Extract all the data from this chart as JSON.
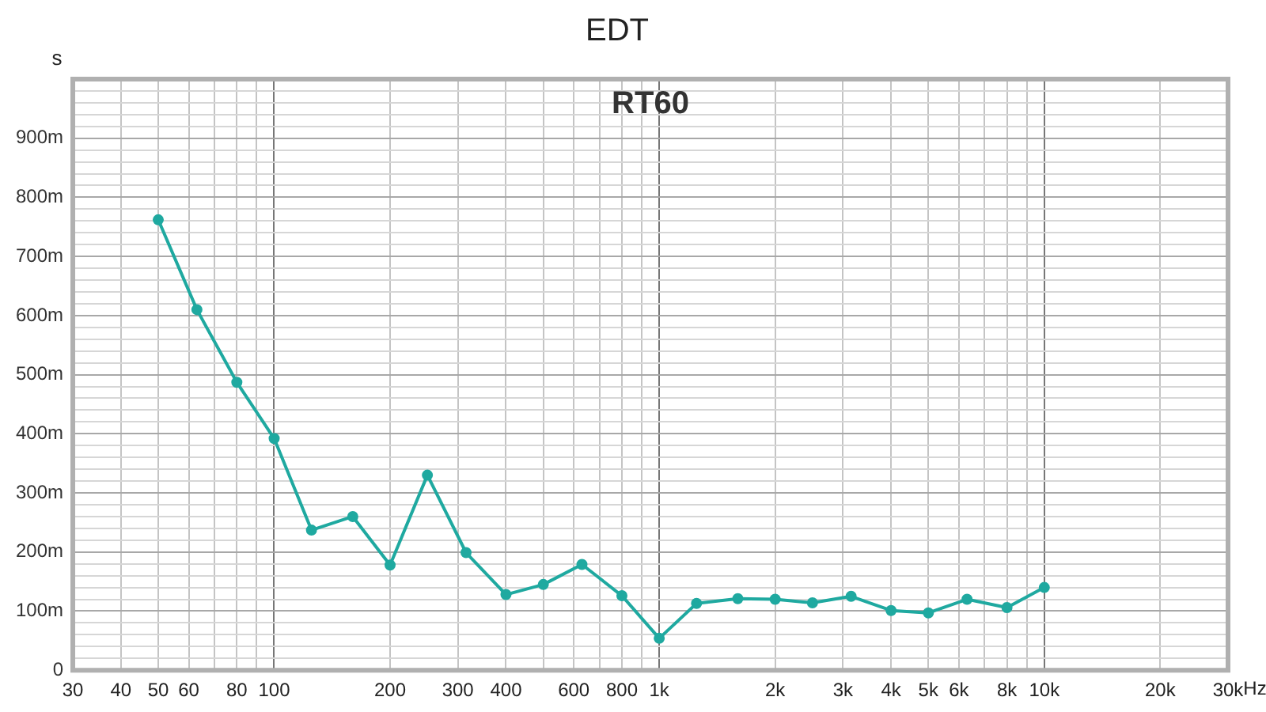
{
  "chart_data": {
    "type": "line",
    "title": "EDT",
    "ylabel": "s",
    "annotations": [
      "RT60"
    ],
    "x": [
      50,
      63,
      80,
      100,
      125,
      160,
      200,
      250,
      315,
      400,
      500,
      630,
      800,
      1000,
      1250,
      1600,
      2000,
      2500,
      3150,
      4000,
      5000,
      6300,
      8000,
      10000
    ],
    "series": [
      {
        "color": "#1fa9a0",
        "values": [
          762,
          610,
          487,
          392,
          237,
          260,
          178,
          330,
          199,
          128,
          145,
          179,
          126,
          54,
          113,
          121,
          120,
          114,
          125,
          101,
          97,
          120,
          106,
          140
        ]
      }
    ],
    "log": "x",
    "xlim": [
      30,
      30000
    ],
    "xticks": [
      30,
      40,
      50,
      60,
      {
        "value": 70,
        "label": null
      },
      80,
      {
        "value": 90,
        "label": null
      },
      100,
      200,
      300,
      400,
      {
        "value": 500,
        "label": null
      },
      600,
      {
        "value": 700,
        "label": null
      },
      800,
      {
        "value": 900,
        "label": null
      },
      {
        "value": 1000,
        "label": "1k"
      },
      {
        "value": 2000,
        "label": "2k"
      },
      {
        "value": 3000,
        "label": "3k"
      },
      {
        "value": 4000,
        "label": "4k"
      },
      {
        "value": 5000,
        "label": "5k"
      },
      {
        "value": 6000,
        "label": "6k"
      },
      {
        "value": 7000,
        "label": null
      },
      {
        "value": 8000,
        "label": "8k"
      },
      {
        "value": 9000,
        "label": null
      },
      {
        "value": 10000,
        "label": "10k"
      },
      {
        "value": 20000,
        "label": "20k"
      },
      {
        "value": 30000,
        "label": "30k"
      }
    ],
    "xlabel": "Hz",
    "ylim": [
      0,
      1000
    ],
    "yticks": [
      0,
      {
        "value": 20,
        "label": null
      },
      {
        "value": 40,
        "label": null
      },
      {
        "value": 60,
        "label": null
      },
      {
        "value": 80,
        "label": null
      },
      {
        "value": 100,
        "label": "100m"
      },
      {
        "value": 120,
        "label": null
      },
      {
        "value": 140,
        "label": null
      },
      {
        "value": 160,
        "label": null
      },
      {
        "value": 180,
        "label": null
      },
      {
        "value": 200,
        "label": "200m"
      },
      {
        "value": 220,
        "label": null
      },
      {
        "value": 240,
        "label": null
      },
      {
        "value": 260,
        "label": null
      },
      {
        "value": 280,
        "label": null
      },
      {
        "value": 300,
        "label": "300m"
      },
      {
        "value": 320,
        "label": null
      },
      {
        "value": 340,
        "label": null
      },
      {
        "value": 360,
        "label": null
      },
      {
        "value": 380,
        "label": null
      },
      {
        "value": 400,
        "label": "400m"
      },
      {
        "value": 420,
        "label": null
      },
      {
        "value": 440,
        "label": null
      },
      {
        "value": 460,
        "label": null
      },
      {
        "value": 480,
        "label": null
      },
      {
        "value": 500,
        "label": "500m"
      },
      {
        "value": 520,
        "label": null
      },
      {
        "value": 540,
        "label": null
      },
      {
        "value": 560,
        "label": null
      },
      {
        "value": 580,
        "label": null
      },
      {
        "value": 600,
        "label": "600m"
      },
      {
        "value": 620,
        "label": null
      },
      {
        "value": 640,
        "label": null
      },
      {
        "value": 660,
        "label": null
      },
      {
        "value": 680,
        "label": null
      },
      {
        "value": 700,
        "label": "700m"
      },
      {
        "value": 720,
        "label": null
      },
      {
        "value": 740,
        "label": null
      },
      {
        "value": 760,
        "label": null
      },
      {
        "value": 780,
        "label": null
      },
      {
        "value": 800,
        "label": "800m"
      },
      {
        "value": 820,
        "label": null
      },
      {
        "value": 840,
        "label": null
      },
      {
        "value": 860,
        "label": null
      },
      {
        "value": 880,
        "label": null
      },
      {
        "value": 900,
        "label": "900m"
      },
      {
        "value": 920,
        "label": null
      },
      {
        "value": 940,
        "label": null
      },
      {
        "value": 960,
        "label": null
      },
      {
        "value": 980,
        "label": null
      },
      {
        "value": 1000,
        "label": null
      }
    ],
    "grid": true,
    "legend": false,
    "marker": "circle",
    "line_style": "solid"
  }
}
